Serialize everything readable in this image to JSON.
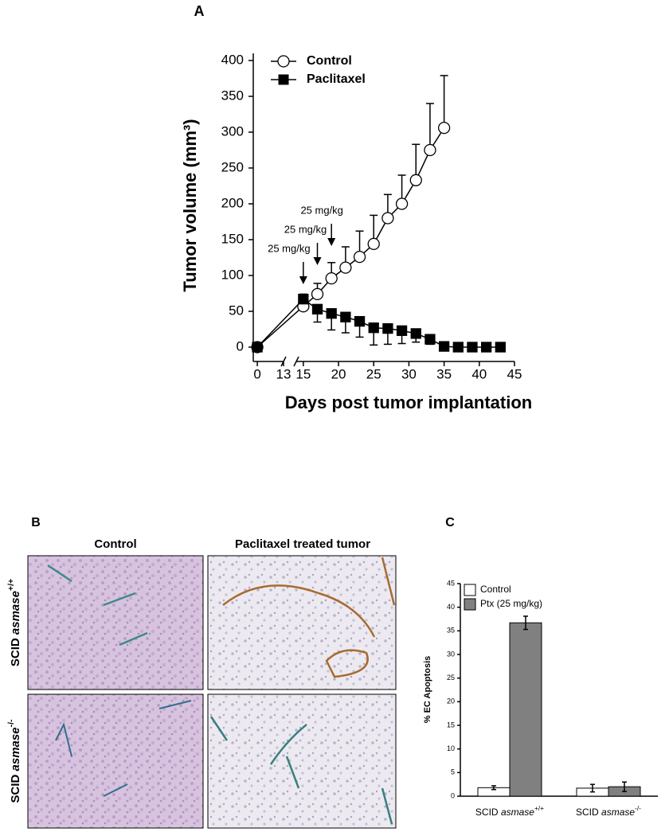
{
  "chart_data": [
    {
      "type": "line",
      "panel_label": "A",
      "xlabel": "Days post tumor implantation",
      "ylabel": "Tumor volume (mm³)",
      "xlim": [
        -2,
        45
      ],
      "x_break": [
        13,
        14
      ],
      "xticks": [
        0,
        13,
        15,
        20,
        25,
        30,
        35,
        40,
        45
      ],
      "ylim": [
        -20,
        410
      ],
      "yticks": [
        0,
        50,
        100,
        150,
        200,
        250,
        300,
        350,
        400
      ],
      "series": [
        {
          "name": "Control",
          "marker": "circle",
          "color": "#ffffff",
          "error_direction": "up",
          "x": [
            0,
            15,
            17,
            19,
            21,
            23,
            25,
            27,
            29,
            31,
            33,
            35
          ],
          "values": [
            0,
            57,
            74,
            96,
            111,
            126,
            144,
            180,
            200,
            233,
            275,
            306
          ],
          "errors": [
            0,
            17,
            15,
            22,
            29,
            36,
            40,
            33,
            40,
            50,
            65,
            73
          ]
        },
        {
          "name": "Paclitaxel",
          "marker": "square",
          "color": "#000000",
          "error_direction": "down",
          "x": [
            0,
            15,
            17,
            19,
            21,
            23,
            25,
            27,
            29,
            31,
            33,
            35,
            37,
            39,
            41,
            43
          ],
          "values": [
            0,
            67,
            53,
            47,
            42,
            36,
            27,
            26,
            23,
            19,
            11,
            1,
            0,
            0,
            0,
            0
          ],
          "errors": [
            0,
            3,
            18,
            23,
            22,
            22,
            24,
            22,
            18,
            12,
            7,
            5,
            3,
            3,
            3,
            3
          ]
        }
      ],
      "annotations": [
        {
          "text": "25 mg/kg",
          "x": 15
        },
        {
          "text": "25 mg/kg",
          "x": 17
        },
        {
          "text": "25 mg/kg",
          "x": 19
        }
      ]
    },
    {
      "type": "bar",
      "panel_label": "C",
      "ylabel": "% EC Apoptosis",
      "categories": [
        {
          "prefix": "SCID ",
          "gene": "asmase",
          "genotype": "+/+"
        },
        {
          "prefix": "SCID ",
          "gene": "asmase",
          "genotype": "-/-"
        }
      ],
      "ylim": [
        0,
        45
      ],
      "yticks": [
        0,
        5,
        10,
        15,
        20,
        25,
        30,
        35,
        40,
        45
      ],
      "series": [
        {
          "name": "Control",
          "color": "#ffffff",
          "values": [
            1.8,
            1.7
          ],
          "errors": [
            0.4,
            0.8
          ]
        },
        {
          "name": "Ptx (25 mg/kg)",
          "color": "#808080",
          "values": [
            36.7,
            2.0
          ],
          "errors": [
            1.4,
            1.0
          ]
        }
      ]
    }
  ],
  "panel_b": {
    "panel_label": "B",
    "column_headers": [
      "Control",
      "Paclitaxel treated tumor"
    ],
    "row_labels": [
      {
        "prefix": "SCID ",
        "gene": "asmase",
        "genotype": "+/+"
      },
      {
        "prefix": "SCID ",
        "gene": "asmase",
        "genotype": "-/-"
      }
    ]
  }
}
